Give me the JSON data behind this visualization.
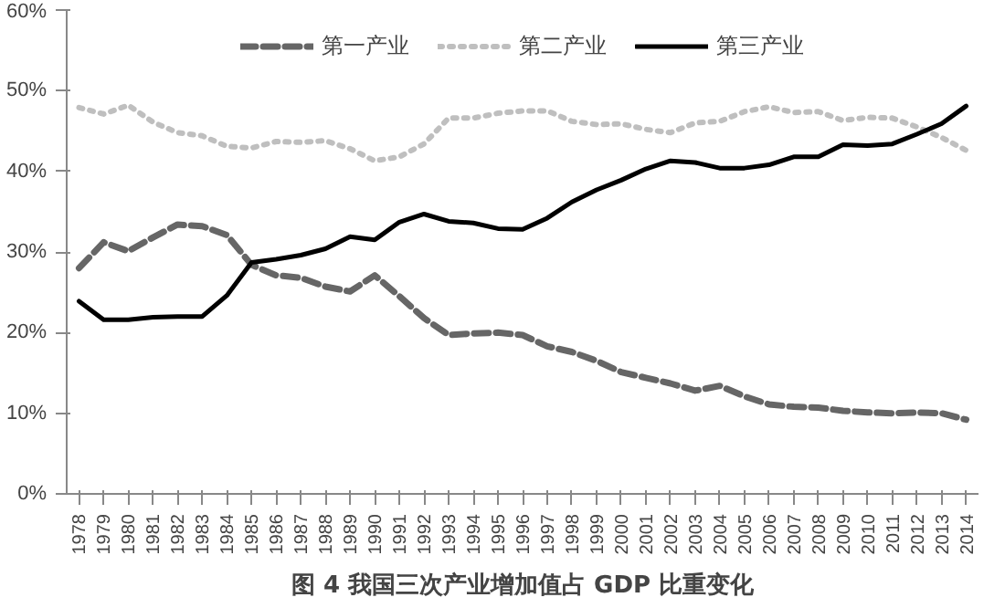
{
  "chart_data": {
    "type": "line",
    "title": "图 4 我国三次产业增加值占 GDP 比重变化",
    "categories": [
      "1978",
      "1979",
      "1980",
      "1981",
      "1982",
      "1983",
      "1984",
      "1985",
      "1986",
      "1987",
      "1988",
      "1989",
      "1990",
      "1991",
      "1992",
      "1993",
      "1994",
      "1995",
      "1996",
      "1997",
      "1998",
      "1999",
      "2000",
      "2001",
      "2002",
      "2003",
      "2004",
      "2005",
      "2006",
      "2007",
      "2008",
      "2009",
      "2010",
      "2011",
      "2012",
      "2013",
      "2014"
    ],
    "ylim": [
      0,
      60
    ],
    "yticks": [
      {
        "value": 0,
        "label": "0%"
      },
      {
        "value": 10,
        "label": "10%"
      },
      {
        "value": 20,
        "label": "20%"
      },
      {
        "value": 30,
        "label": "30%"
      },
      {
        "value": 40,
        "label": "40%"
      },
      {
        "value": 50,
        "label": "50%"
      },
      {
        "value": 60,
        "label": "60%"
      }
    ],
    "grid": false,
    "legend": "top",
    "series": [
      {
        "name": "第一产业",
        "color": "#666666",
        "line_style": "dashed",
        "values": [
          28.0,
          31.2,
          30.1,
          31.8,
          33.4,
          33.2,
          32.1,
          28.4,
          27.1,
          26.8,
          25.7,
          25.1,
          27.1,
          24.5,
          21.8,
          19.7,
          19.9,
          20.0,
          19.7,
          18.3,
          17.6,
          16.5,
          15.1,
          14.4,
          13.7,
          12.8,
          13.4,
          12.1,
          11.1,
          10.8,
          10.7,
          10.3,
          10.1,
          10.0,
          10.1,
          10.0,
          9.2
        ]
      },
      {
        "name": "第二产业",
        "color": "#bfbfbf",
        "line_style": "dotted",
        "values": [
          47.9,
          47.1,
          48.2,
          46.1,
          44.8,
          44.4,
          43.1,
          42.9,
          43.7,
          43.6,
          43.8,
          42.8,
          41.3,
          41.8,
          43.4,
          46.6,
          46.6,
          47.2,
          47.5,
          47.5,
          46.2,
          45.8,
          45.9,
          45.2,
          44.8,
          46.0,
          46.2,
          47.4,
          48.0,
          47.3,
          47.4,
          46.3,
          46.7,
          46.6,
          45.5,
          44.2,
          42.6
        ]
      },
      {
        "name": "第三产业",
        "color": "#000000",
        "line_style": "solid",
        "values": [
          23.9,
          21.6,
          21.6,
          21.9,
          22.0,
          22.0,
          24.6,
          28.7,
          29.1,
          29.6,
          30.4,
          31.9,
          31.5,
          33.7,
          34.7,
          33.8,
          33.6,
          32.9,
          32.8,
          34.2,
          36.2,
          37.7,
          38.9,
          40.3,
          41.3,
          41.1,
          40.4,
          40.4,
          40.8,
          41.8,
          41.8,
          43.3,
          43.2,
          43.4,
          44.6,
          45.9,
          48.1
        ]
      }
    ]
  }
}
